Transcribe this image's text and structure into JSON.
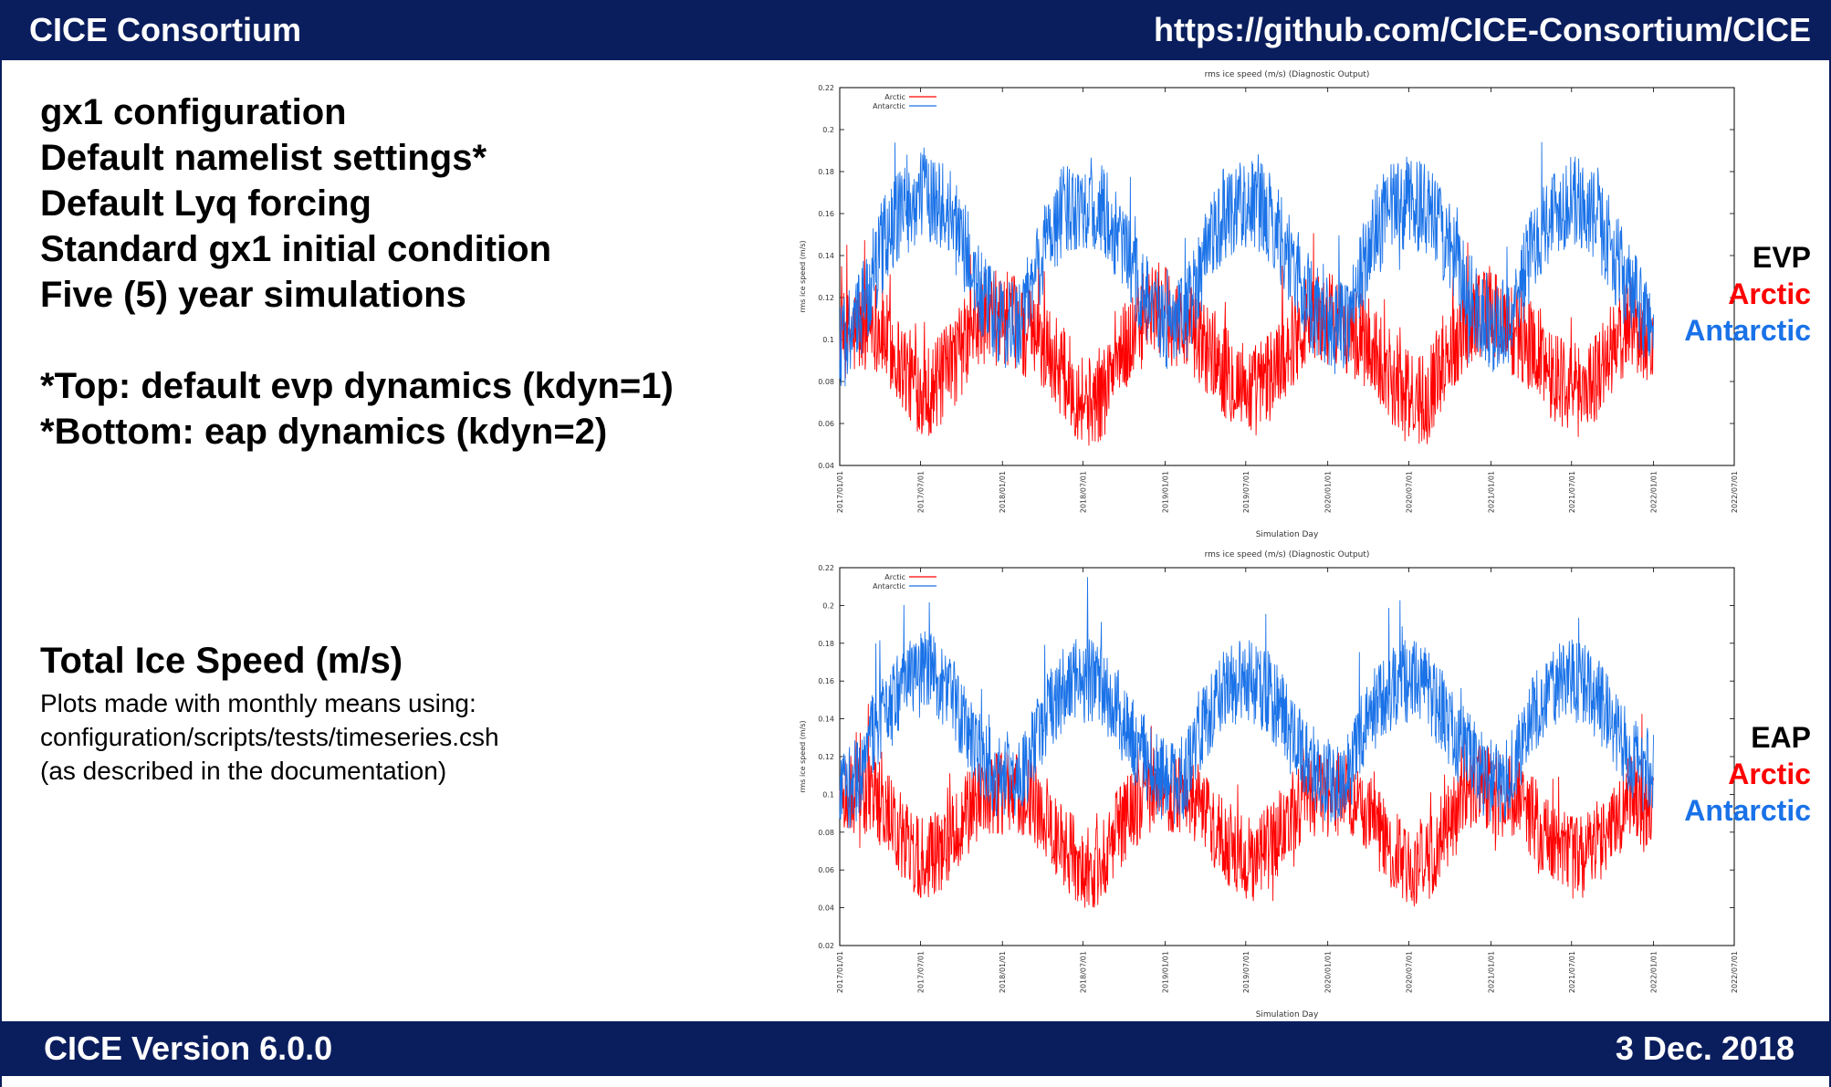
{
  "header": {
    "left": "CICE Consortium",
    "right": "https://github.com/CICE-Consortium/CICE"
  },
  "footer": {
    "left": "CICE Version 6.0.0",
    "right": "3 Dec. 2018"
  },
  "left_panel": {
    "bullets": [
      "gx1 configuration",
      "Default namelist settings*",
      "Default Lyq forcing",
      "Standard gx1 initial condition",
      "Five (5) year simulations"
    ],
    "notes": [
      "*Top: default evp dynamics (kdyn=1)",
      "*Bottom: eap dynamics (kdyn=2)"
    ],
    "speed_title": "Total Ice Speed (m/s)",
    "description": [
      "Plots made with monthly means using:",
      "configuration/scripts/tests/timeseries.csh",
      "(as described in the documentation)"
    ]
  },
  "side_labels": [
    {
      "title": "EVP",
      "arctic": "Arctic",
      "antarctic": "Antarctic"
    },
    {
      "title": "EAP",
      "arctic": "Arctic",
      "antarctic": "Antarctic"
    }
  ],
  "colors": {
    "bar": "#0a1e5e",
    "arctic": "#ff0000",
    "antarctic": "#1a72e8"
  },
  "chart_data": [
    {
      "type": "line",
      "title": "rms ice speed   (m/s) (Diagnostic Output)",
      "xlabel": "Simulation Day",
      "ylabel": "rms ice speed   (m/s)",
      "x_ticks": [
        "2017/01/01",
        "2017/07/01",
        "2018/01/01",
        "2018/07/01",
        "2019/01/01",
        "2019/07/01",
        "2020/01/01",
        "2020/07/01",
        "2021/01/01",
        "2021/07/01",
        "2022/01/01",
        "2022/07/01"
      ],
      "y_ticks": [
        "0.04",
        "0.06",
        "0.08",
        "0.1",
        "0.12",
        "0.14",
        "0.16",
        "0.18",
        "0.2",
        "0.22"
      ],
      "ylim": [
        0.04,
        0.22
      ],
      "xlim": [
        "2017/01/01",
        "2022/07/01"
      ],
      "legend": "top-left",
      "series": [
        {
          "name": "Arctic",
          "color": "#ff0000",
          "x_monthly": [
            "2017-01",
            "2017-02",
            "2017-03",
            "2017-04",
            "2017-05",
            "2017-06",
            "2017-07",
            "2017-08",
            "2017-09",
            "2017-10",
            "2017-11",
            "2017-12",
            "2018-01",
            "2018-02",
            "2018-03",
            "2018-04",
            "2018-05",
            "2018-06",
            "2018-07",
            "2018-08",
            "2018-09",
            "2018-10",
            "2018-11",
            "2018-12",
            "2019-01",
            "2019-02",
            "2019-03",
            "2019-04",
            "2019-05",
            "2019-06",
            "2019-07",
            "2019-08",
            "2019-09",
            "2019-10",
            "2019-11",
            "2019-12",
            "2020-01",
            "2020-02",
            "2020-03",
            "2020-04",
            "2020-05",
            "2020-06",
            "2020-07",
            "2020-08",
            "2020-09",
            "2020-10",
            "2020-11",
            "2020-12",
            "2021-01",
            "2021-02",
            "2021-03",
            "2021-04",
            "2021-05",
            "2021-06",
            "2021-07",
            "2021-08",
            "2021-09",
            "2021-10",
            "2021-11",
            "2021-12"
          ],
          "values": [
            0.1,
            0.105,
            0.11,
            0.1,
            0.09,
            0.08,
            0.075,
            0.08,
            0.09,
            0.1,
            0.11,
            0.11,
            0.11,
            0.105,
            0.1,
            0.095,
            0.085,
            0.075,
            0.07,
            0.075,
            0.09,
            0.1,
            0.11,
            0.115,
            0.11,
            0.105,
            0.1,
            0.095,
            0.085,
            0.08,
            0.075,
            0.08,
            0.09,
            0.1,
            0.11,
            0.11,
            0.11,
            0.105,
            0.1,
            0.095,
            0.085,
            0.075,
            0.07,
            0.075,
            0.09,
            0.1,
            0.11,
            0.115,
            0.11,
            0.105,
            0.1,
            0.095,
            0.085,
            0.08,
            0.075,
            0.08,
            0.09,
            0.1,
            0.11,
            0.1
          ]
        },
        {
          "name": "Antarctic",
          "color": "#1a72e8",
          "x_monthly": [
            "2017-01",
            "2017-02",
            "2017-03",
            "2017-04",
            "2017-05",
            "2017-06",
            "2017-07",
            "2017-08",
            "2017-09",
            "2017-10",
            "2017-11",
            "2017-12",
            "2018-01",
            "2018-02",
            "2018-03",
            "2018-04",
            "2018-05",
            "2018-06",
            "2018-07",
            "2018-08",
            "2018-09",
            "2018-10",
            "2018-11",
            "2018-12",
            "2019-01",
            "2019-02",
            "2019-03",
            "2019-04",
            "2019-05",
            "2019-06",
            "2019-07",
            "2019-08",
            "2019-09",
            "2019-10",
            "2019-11",
            "2019-12",
            "2020-01",
            "2020-02",
            "2020-03",
            "2020-04",
            "2020-05",
            "2020-06",
            "2020-07",
            "2020-08",
            "2020-09",
            "2020-10",
            "2020-11",
            "2020-12",
            "2021-01",
            "2021-02",
            "2021-03",
            "2021-04",
            "2021-05",
            "2021-06",
            "2021-07",
            "2021-08",
            "2021-09",
            "2021-10",
            "2021-11",
            "2021-12"
          ],
          "values": [
            0.1,
            0.11,
            0.13,
            0.15,
            0.16,
            0.165,
            0.17,
            0.165,
            0.155,
            0.14,
            0.12,
            0.11,
            0.105,
            0.11,
            0.13,
            0.15,
            0.16,
            0.165,
            0.165,
            0.16,
            0.15,
            0.135,
            0.12,
            0.11,
            0.105,
            0.11,
            0.13,
            0.15,
            0.16,
            0.165,
            0.165,
            0.16,
            0.15,
            0.135,
            0.12,
            0.11,
            0.105,
            0.11,
            0.13,
            0.15,
            0.16,
            0.165,
            0.165,
            0.16,
            0.15,
            0.135,
            0.12,
            0.11,
            0.105,
            0.11,
            0.13,
            0.15,
            0.16,
            0.165,
            0.165,
            0.16,
            0.15,
            0.135,
            0.12,
            0.11
          ]
        }
      ]
    },
    {
      "type": "line",
      "title": "rms ice speed   (m/s) (Diagnostic Output)",
      "xlabel": "Simulation Day",
      "ylabel": "rms ice speed   (m/s)",
      "x_ticks": [
        "2017/01/01",
        "2017/07/01",
        "2018/01/01",
        "2018/07/01",
        "2019/01/01",
        "2019/07/01",
        "2020/01/01",
        "2020/07/01",
        "2021/01/01",
        "2021/07/01",
        "2022/01/01",
        "2022/07/01"
      ],
      "y_ticks": [
        "0.02",
        "0.04",
        "0.06",
        "0.08",
        "0.1",
        "0.12",
        "0.14",
        "0.16",
        "0.18",
        "0.2",
        "0.22"
      ],
      "ylim": [
        0.02,
        0.22
      ],
      "xlim": [
        "2017/01/01",
        "2022/07/01"
      ],
      "legend": "top-left",
      "series": [
        {
          "name": "Arctic",
          "color": "#ff0000",
          "x_monthly": [
            "2017-01",
            "2017-02",
            "2017-03",
            "2017-04",
            "2017-05",
            "2017-06",
            "2017-07",
            "2017-08",
            "2017-09",
            "2017-10",
            "2017-11",
            "2017-12",
            "2018-01",
            "2018-02",
            "2018-03",
            "2018-04",
            "2018-05",
            "2018-06",
            "2018-07",
            "2018-08",
            "2018-09",
            "2018-10",
            "2018-11",
            "2018-12",
            "2019-01",
            "2019-02",
            "2019-03",
            "2019-04",
            "2019-05",
            "2019-06",
            "2019-07",
            "2019-08",
            "2019-09",
            "2019-10",
            "2019-11",
            "2019-12",
            "2020-01",
            "2020-02",
            "2020-03",
            "2020-04",
            "2020-05",
            "2020-06",
            "2020-07",
            "2020-08",
            "2020-09",
            "2020-10",
            "2020-11",
            "2020-12",
            "2021-01",
            "2021-02",
            "2021-03",
            "2021-04",
            "2021-05",
            "2021-06",
            "2021-07",
            "2021-08",
            "2021-09",
            "2021-10",
            "2021-11",
            "2021-12"
          ],
          "values": [
            0.1,
            0.1,
            0.1,
            0.09,
            0.08,
            0.07,
            0.065,
            0.07,
            0.08,
            0.09,
            0.1,
            0.1,
            0.1,
            0.1,
            0.095,
            0.085,
            0.075,
            0.065,
            0.06,
            0.065,
            0.08,
            0.09,
            0.1,
            0.105,
            0.1,
            0.1,
            0.095,
            0.085,
            0.075,
            0.07,
            0.065,
            0.07,
            0.08,
            0.09,
            0.1,
            0.1,
            0.1,
            0.1,
            0.095,
            0.085,
            0.075,
            0.065,
            0.06,
            0.065,
            0.08,
            0.09,
            0.1,
            0.105,
            0.1,
            0.1,
            0.095,
            0.085,
            0.075,
            0.07,
            0.065,
            0.07,
            0.08,
            0.09,
            0.1,
            0.09
          ]
        },
        {
          "name": "Antarctic",
          "color": "#1a72e8",
          "x_monthly": [
            "2017-01",
            "2017-02",
            "2017-03",
            "2017-04",
            "2017-05",
            "2017-06",
            "2017-07",
            "2017-08",
            "2017-09",
            "2017-10",
            "2017-11",
            "2017-12",
            "2018-01",
            "2018-02",
            "2018-03",
            "2018-04",
            "2018-05",
            "2018-06",
            "2018-07",
            "2018-08",
            "2018-09",
            "2018-10",
            "2018-11",
            "2018-12",
            "2019-01",
            "2019-02",
            "2019-03",
            "2019-04",
            "2019-05",
            "2019-06",
            "2019-07",
            "2019-08",
            "2019-09",
            "2019-10",
            "2019-11",
            "2019-12",
            "2020-01",
            "2020-02",
            "2020-03",
            "2020-04",
            "2020-05",
            "2020-06",
            "2020-07",
            "2020-08",
            "2020-09",
            "2020-10",
            "2020-11",
            "2020-12",
            "2021-01",
            "2021-02",
            "2021-03",
            "2021-04",
            "2021-05",
            "2021-06",
            "2021-07",
            "2021-08",
            "2021-09",
            "2021-10",
            "2021-11",
            "2021-12"
          ],
          "values": [
            0.1,
            0.11,
            0.13,
            0.145,
            0.155,
            0.16,
            0.165,
            0.16,
            0.15,
            0.135,
            0.12,
            0.11,
            0.105,
            0.11,
            0.13,
            0.145,
            0.155,
            0.16,
            0.16,
            0.155,
            0.145,
            0.13,
            0.12,
            0.11,
            0.105,
            0.11,
            0.13,
            0.145,
            0.155,
            0.16,
            0.16,
            0.155,
            0.145,
            0.13,
            0.12,
            0.11,
            0.105,
            0.11,
            0.13,
            0.145,
            0.155,
            0.16,
            0.16,
            0.155,
            0.145,
            0.13,
            0.12,
            0.11,
            0.105,
            0.11,
            0.13,
            0.145,
            0.155,
            0.16,
            0.16,
            0.155,
            0.145,
            0.13,
            0.12,
            0.11
          ]
        }
      ]
    }
  ]
}
